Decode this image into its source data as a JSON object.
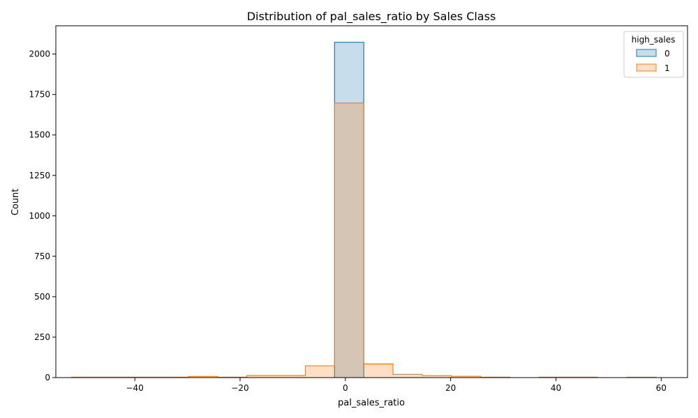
{
  "chart_data": {
    "type": "histogram",
    "title": "Distribution of pal_sales_ratio by Sales Class",
    "xlabel": "pal_sales_ratio",
    "ylabel": "Count",
    "xlim": [
      -55,
      65
    ],
    "ylim": [
      0,
      2175
    ],
    "x_ticks": [
      -40,
      -20,
      0,
      20,
      40,
      60
    ],
    "x_tick_labels": [
      "−40",
      "−20",
      "0",
      "20",
      "40",
      "60"
    ],
    "y_ticks": [
      0,
      250,
      500,
      750,
      1000,
      1250,
      1500,
      1750,
      2000
    ],
    "y_tick_labels": [
      "0",
      "250",
      "500",
      "750",
      "1000",
      "1250",
      "1500",
      "1750",
      "2000"
    ],
    "grid": false,
    "legend": {
      "title": "high_sales",
      "placement": "top-right"
    },
    "bin_edges": [
      -52.0,
      -46.45,
      -40.9,
      -35.35,
      -29.8,
      -24.25,
      -18.7,
      -13.15,
      -7.6,
      -2.05,
      3.5,
      9.05,
      14.6,
      20.15,
      25.7,
      31.25,
      36.8,
      42.35,
      47.9,
      53.45,
      59.0
    ],
    "series": [
      {
        "name": "0",
        "color": "#1f77b4",
        "counts": [
          0,
          0,
          0,
          0,
          0,
          0,
          0,
          0,
          0,
          2073,
          0,
          0,
          0,
          0,
          0,
          0,
          0,
          0,
          0,
          0
        ]
      },
      {
        "name": "1",
        "color": "#ff7f0e",
        "counts": [
          3,
          3,
          3,
          3,
          7,
          3,
          13,
          13,
          73,
          1698,
          85,
          20,
          12,
          8,
          3,
          0,
          3,
          3,
          0,
          2
        ]
      }
    ]
  }
}
